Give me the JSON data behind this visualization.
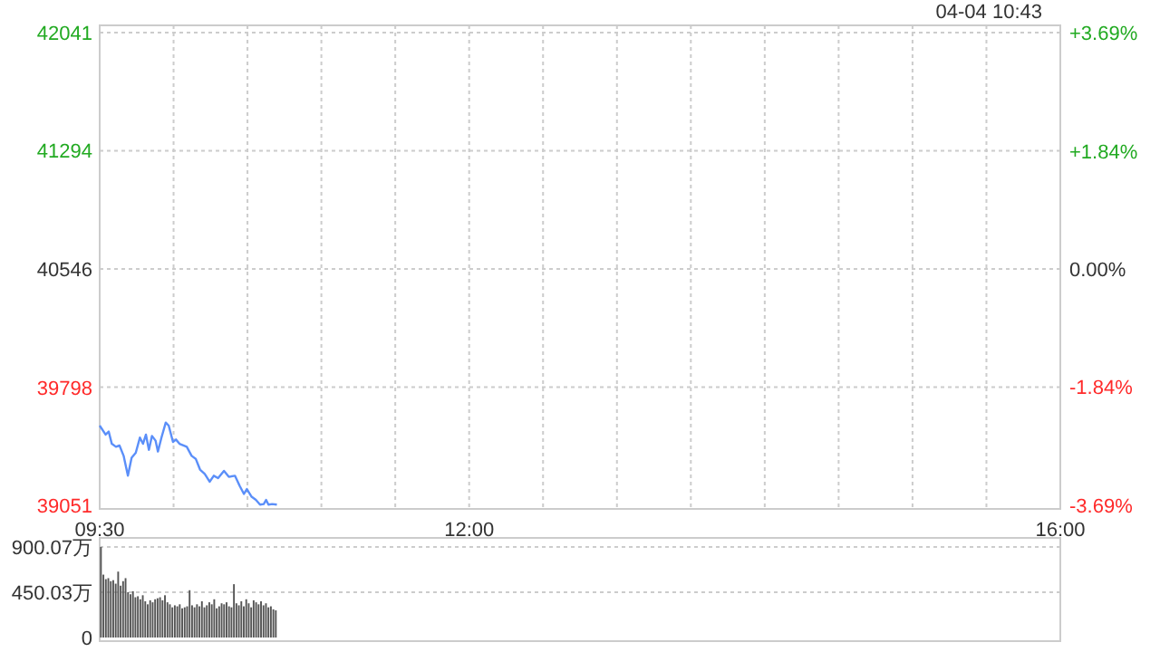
{
  "chart_data": [
    {
      "type": "line",
      "annotations": [
        "04-04 10:43"
      ],
      "xlim": [
        9.5,
        16
      ],
      "xticks": [
        {
          "value": 9.5,
          "label": "09:30"
        },
        {
          "value": 10,
          "label": null
        },
        {
          "value": 10.5,
          "label": null
        },
        {
          "value": 11,
          "label": null
        },
        {
          "value": 11.5,
          "label": null
        },
        {
          "value": 12,
          "label": "12:00"
        },
        {
          "value": 12.5,
          "label": null
        },
        {
          "value": 13,
          "label": null
        },
        {
          "value": 13.5,
          "label": null
        },
        {
          "value": 14,
          "label": null
        },
        {
          "value": 14.5,
          "label": null
        },
        {
          "value": 15,
          "label": null
        },
        {
          "value": 15.5,
          "label": null
        },
        {
          "value": 16,
          "label": "16:00"
        }
      ],
      "ylim": [
        39051,
        42041
      ],
      "yticks": [
        39051,
        39798,
        40546,
        41294,
        42041
      ],
      "y2lim": [
        -3.69,
        3.69
      ],
      "y2ticks": [
        {
          "value": -3.69,
          "label": "-3.69%"
        },
        {
          "value": -1.84,
          "label": "-1.84%"
        },
        {
          "value": 0,
          "label": "0.00%"
        },
        {
          "value": 1.84,
          "label": "+1.84%"
        },
        {
          "value": 3.69,
          "label": "+3.69%"
        }
      ],
      "grid": true,
      "series": [
        {
          "color": "#5b8ff9",
          "x": [
            9.5,
            9.54,
            9.561,
            9.582,
            9.61,
            9.634,
            9.662,
            9.691,
            9.716,
            9.744,
            9.772,
            9.793,
            9.813,
            9.833,
            9.854,
            9.878,
            9.894,
            9.918,
            9.947,
            9.967,
            9.996,
            10.016,
            10.04,
            10.089,
            10.122,
            10.15,
            10.179,
            10.211,
            10.244,
            10.272,
            10.301,
            10.341,
            10.374,
            10.415,
            10.447,
            10.476,
            10.496,
            10.528,
            10.557,
            10.585,
            10.61,
            10.626,
            10.642,
            10.667,
            10.699
          ],
          "values": [
            39555,
            39498,
            39517,
            39440,
            39421,
            39429,
            39364,
            39238,
            39352,
            39383,
            39479,
            39440,
            39498,
            39402,
            39490,
            39460,
            39391,
            39479,
            39574,
            39555,
            39452,
            39467,
            39440,
            39421,
            39364,
            39345,
            39277,
            39249,
            39200,
            39238,
            39223,
            39269,
            39231,
            39238,
            39174,
            39123,
            39154,
            39105,
            39085,
            39055,
            39059,
            39085,
            39055,
            39059,
            39055
          ]
        }
      ]
    },
    {
      "type": "bar",
      "xlim": [
        9.5,
        16
      ],
      "ylim": [
        0,
        900.07
      ],
      "yticks": [
        0,
        {
          "value": 450.03,
          "label": "450.03万"
        },
        {
          "value": 900.07,
          "label": "900.07万"
        }
      ],
      "grid": "y",
      "tick_labels": "y",
      "series": [
        {
          "color": "#555555",
          "x": [
            9.5,
            9.5167,
            9.5333,
            9.55,
            9.5667,
            9.5833,
            9.6,
            9.6167,
            9.6333,
            9.65,
            9.6667,
            9.6833,
            9.7,
            9.7167,
            9.7333,
            9.75,
            9.7667,
            9.7833,
            9.8,
            9.8167,
            9.8333,
            9.85,
            9.8667,
            9.8833,
            9.9,
            9.9167,
            9.9333,
            9.95,
            9.9667,
            9.9833,
            10.0,
            10.0167,
            10.0333,
            10.05,
            10.0667,
            10.0833,
            10.1,
            10.1167,
            10.1333,
            10.15,
            10.1667,
            10.1833,
            10.2,
            10.2167,
            10.2333,
            10.25,
            10.2667,
            10.2833,
            10.3,
            10.3167,
            10.3333,
            10.35,
            10.3667,
            10.3833,
            10.4,
            10.4167,
            10.4333,
            10.45,
            10.4667,
            10.4833,
            10.5,
            10.5167,
            10.5333,
            10.55,
            10.5667,
            10.5833,
            10.6,
            10.6167,
            10.6333,
            10.65,
            10.6667,
            10.6833
          ],
          "values": [
            900,
            625,
            580,
            590,
            560,
            570,
            535,
            655,
            515,
            560,
            590,
            450,
            430,
            460,
            400,
            410,
            380,
            420,
            360,
            330,
            370,
            350,
            380,
            390,
            400,
            370,
            420,
            350,
            330,
            300,
            320,
            310,
            330,
            290,
            300,
            310,
            470,
            320,
            300,
            330,
            310,
            360,
            300,
            320,
            350,
            330,
            380,
            290,
            310,
            340,
            330,
            350,
            310,
            300,
            530,
            340,
            320,
            360,
            310,
            380,
            340,
            300,
            370,
            350,
            330,
            360,
            320,
            340,
            300,
            310,
            280,
            270
          ]
        }
      ]
    }
  ]
}
